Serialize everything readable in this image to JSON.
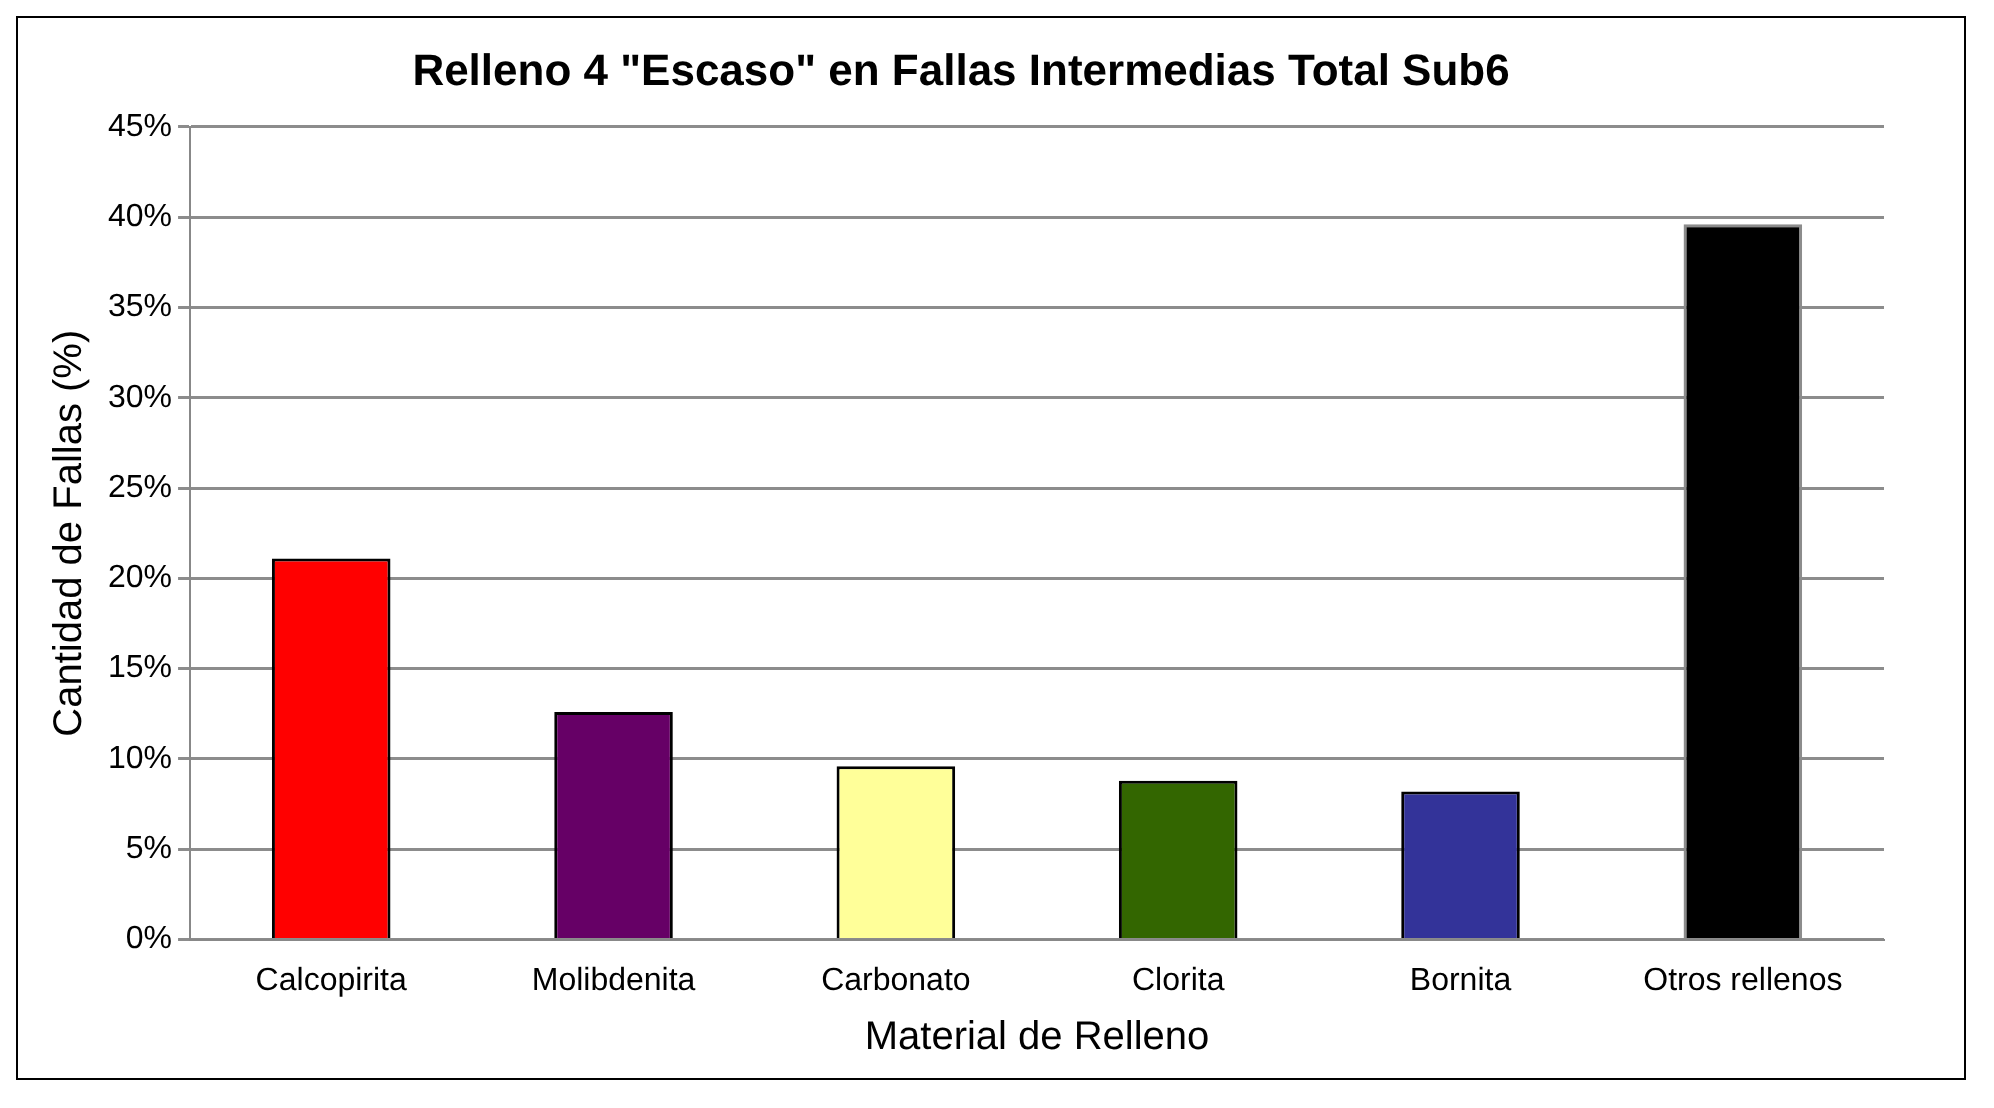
{
  "chart_data": {
    "type": "bar",
    "title": "Relleno 4 \"Escaso\" en Fallas Intermedias Total Sub6",
    "xlabel": "Material de Relleno",
    "ylabel": "Cantidad de Fallas (%)",
    "categories": [
      "Calcopirita",
      "Molibdenita",
      "Carbonato",
      "Clorita",
      "Bornita",
      "Otros rellenos"
    ],
    "values": [
      21.1,
      12.6,
      9.6,
      8.8,
      8.2,
      39.6
    ],
    "colors": [
      "#ff0000",
      "#660066",
      "#ffff99",
      "#336600",
      "#333399",
      "#000000"
    ],
    "ylim": [
      0,
      45
    ],
    "yticks": [
      {
        "value": 0,
        "label": "0%"
      },
      {
        "value": 5,
        "label": "5%"
      },
      {
        "value": 10,
        "label": "10%"
      },
      {
        "value": 15,
        "label": "15%"
      },
      {
        "value": 20,
        "label": "20%"
      },
      {
        "value": 25,
        "label": "25%"
      },
      {
        "value": 30,
        "label": "30%"
      },
      {
        "value": 35,
        "label": "35%"
      },
      {
        "value": 40,
        "label": "40%"
      },
      {
        "value": 45,
        "label": "45%"
      }
    ],
    "grid": "y",
    "legend": false
  }
}
